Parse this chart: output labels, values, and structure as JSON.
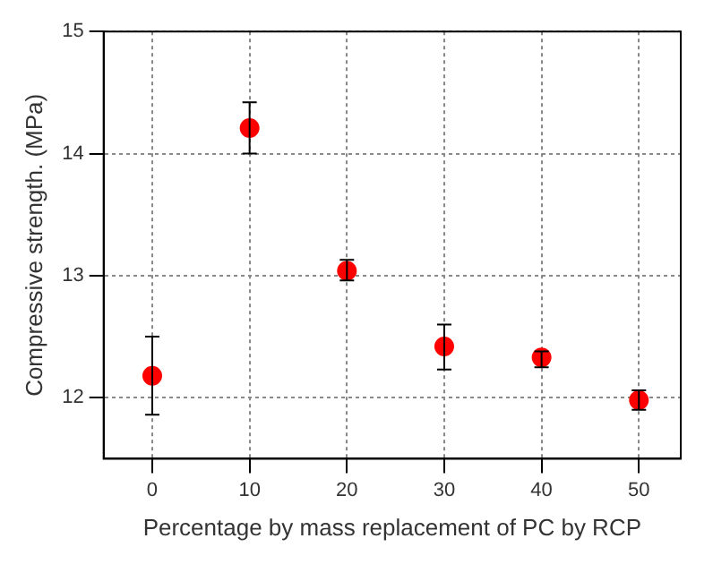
{
  "chart_data": {
    "type": "scatter",
    "xlabel": "Percentage by mass replacement of PC by RCP",
    "ylabel": "Compressive strength. (MPa)",
    "x": [
      0,
      10,
      20,
      30,
      40,
      50
    ],
    "series": [
      {
        "color": "#ff0000",
        "values": [
          12.18,
          14.21,
          13.04,
          12.42,
          12.33,
          11.98
        ],
        "errors": [
          [
            11.86,
            12.5
          ],
          [
            14.0,
            14.42
          ],
          [
            12.96,
            13.13
          ],
          [
            12.23,
            12.6
          ],
          [
            12.25,
            12.38
          ],
          [
            11.9,
            12.06
          ]
        ]
      }
    ],
    "xlim": [
      -5,
      54.3
    ],
    "xticks": [
      0,
      10,
      20,
      30,
      40,
      50
    ],
    "ylim": [
      11.5,
      15
    ],
    "yticks": [
      12,
      13,
      14,
      15
    ],
    "grid": true,
    "legend": false,
    "marker": "circle"
  }
}
